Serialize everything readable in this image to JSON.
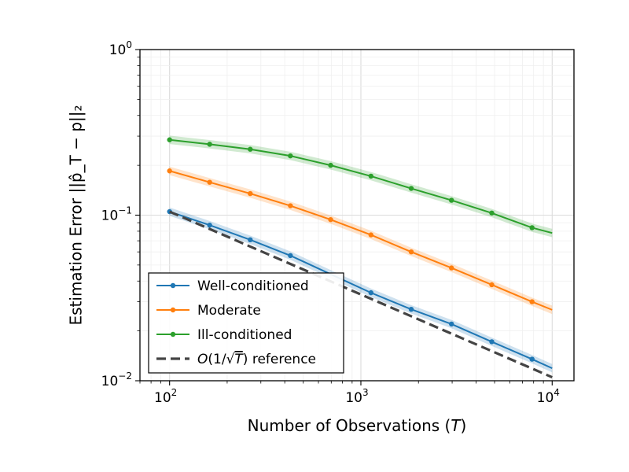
{
  "chart_data": {
    "type": "line",
    "title": "",
    "xlabel": "Number of Observations (T)",
    "ylabel": "Estimation Error ||p̂_T − p||₂",
    "xscale": "log",
    "yscale": "log",
    "xlim": [
      70,
      13000
    ],
    "ylim": [
      0.01,
      1.0
    ],
    "grid": true,
    "legend_position": "lower-left",
    "x_ticks": [
      {
        "value": 100,
        "base": "10",
        "exp": "2"
      },
      {
        "value": 1000,
        "base": "10",
        "exp": "3"
      },
      {
        "value": 10000,
        "base": "10",
        "exp": "4"
      }
    ],
    "y_ticks": [
      {
        "value": 0.01,
        "base": "10",
        "exp": "−2"
      },
      {
        "value": 0.1,
        "base": "10",
        "exp": "−1"
      },
      {
        "value": 1.0,
        "base": "10",
        "exp": "0"
      }
    ],
    "x": [
      100,
      162,
      264,
      428,
      695,
      1129,
      1833,
      2976,
      4833,
      7848,
      10000
    ],
    "series": [
      {
        "name": "Well-conditioned",
        "color": "#1f77b4",
        "values": [
          0.105,
          0.087,
          0.071,
          0.057,
          0.044,
          0.034,
          0.027,
          0.022,
          0.0172,
          0.0135,
          0.0119
        ],
        "marker_indices": [
          0,
          1,
          2,
          3,
          5,
          6,
          7,
          8,
          9
        ]
      },
      {
        "name": "Moderate",
        "color": "#ff7f0e",
        "values": [
          0.185,
          0.158,
          0.135,
          0.114,
          0.094,
          0.076,
          0.06,
          0.048,
          0.038,
          0.03,
          0.0268
        ],
        "marker_indices": [
          0,
          1,
          2,
          3,
          4,
          5,
          6,
          7,
          8,
          9
        ]
      },
      {
        "name": "Ill-conditioned",
        "color": "#2ca02c",
        "values": [
          0.285,
          0.268,
          0.25,
          0.228,
          0.2,
          0.172,
          0.145,
          0.123,
          0.103,
          0.084,
          0.078
        ],
        "marker_indices": [
          0,
          1,
          2,
          3,
          4,
          5,
          6,
          7,
          8,
          9
        ]
      }
    ],
    "reference": {
      "name": "O(1/√T) reference",
      "color": "#444444",
      "x": [
        100,
        10000
      ],
      "values": [
        0.105,
        0.0105
      ]
    },
    "legend": {
      "items": [
        {
          "label": "Well-conditioned",
          "color": "#1f77b4",
          "style": "line-marker"
        },
        {
          "label": "Moderate",
          "color": "#ff7f0e",
          "style": "line-marker"
        },
        {
          "label": "Ill-conditioned",
          "color": "#2ca02c",
          "style": "line-marker"
        },
        {
          "label_prefix": "O",
          "label_mid": "(1/√",
          "label_T": "T",
          "label_suffix": ") reference",
          "color": "#444444",
          "style": "dashed"
        }
      ]
    }
  }
}
